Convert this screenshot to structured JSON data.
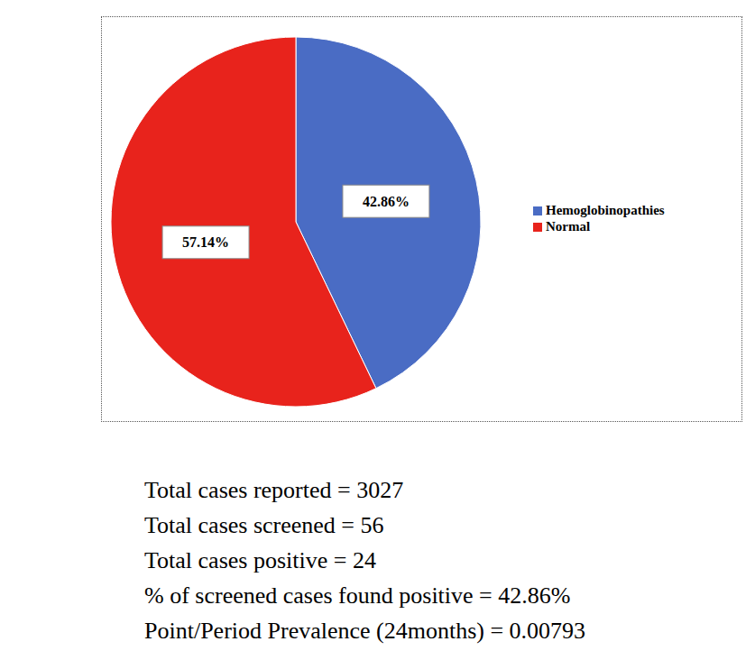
{
  "chart_data": {
    "type": "pie",
    "categories": [
      "Hemoglobinopathies",
      "Normal"
    ],
    "values": [
      42.86,
      57.14
    ],
    "value_labels": [
      "42.86%",
      "57.14%"
    ],
    "colors": [
      "#4a6cc4",
      "#e8231c"
    ],
    "data_labels": true,
    "legend": "right",
    "annotations": [
      "Total cases reported = 3027",
      "Total cases screened = 56",
      "Total cases positive = 24",
      "% of screened cases found positive = 42.86%",
      "Point/Period Prevalence (24months) = 0.00793"
    ]
  }
}
